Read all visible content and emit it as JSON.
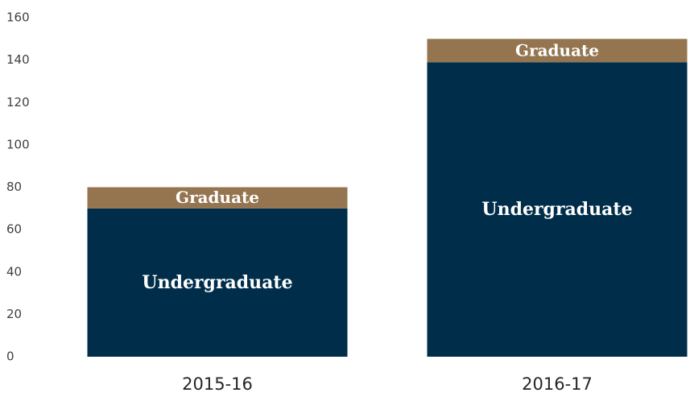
{
  "chart_data": {
    "type": "stacked_bar",
    "categories": [
      "2015-16",
      "2016-17"
    ],
    "series": [
      {
        "name": "Undergraduate",
        "color": "#002d4a",
        "values": [
          70,
          139
        ]
      },
      {
        "name": "Graduate",
        "color": "#957550",
        "values": [
          10,
          11
        ]
      }
    ],
    "ylim": [
      0,
      160
    ],
    "yticks": [
      0,
      20,
      40,
      60,
      80,
      100,
      120,
      140,
      160
    ],
    "grid": false
  }
}
